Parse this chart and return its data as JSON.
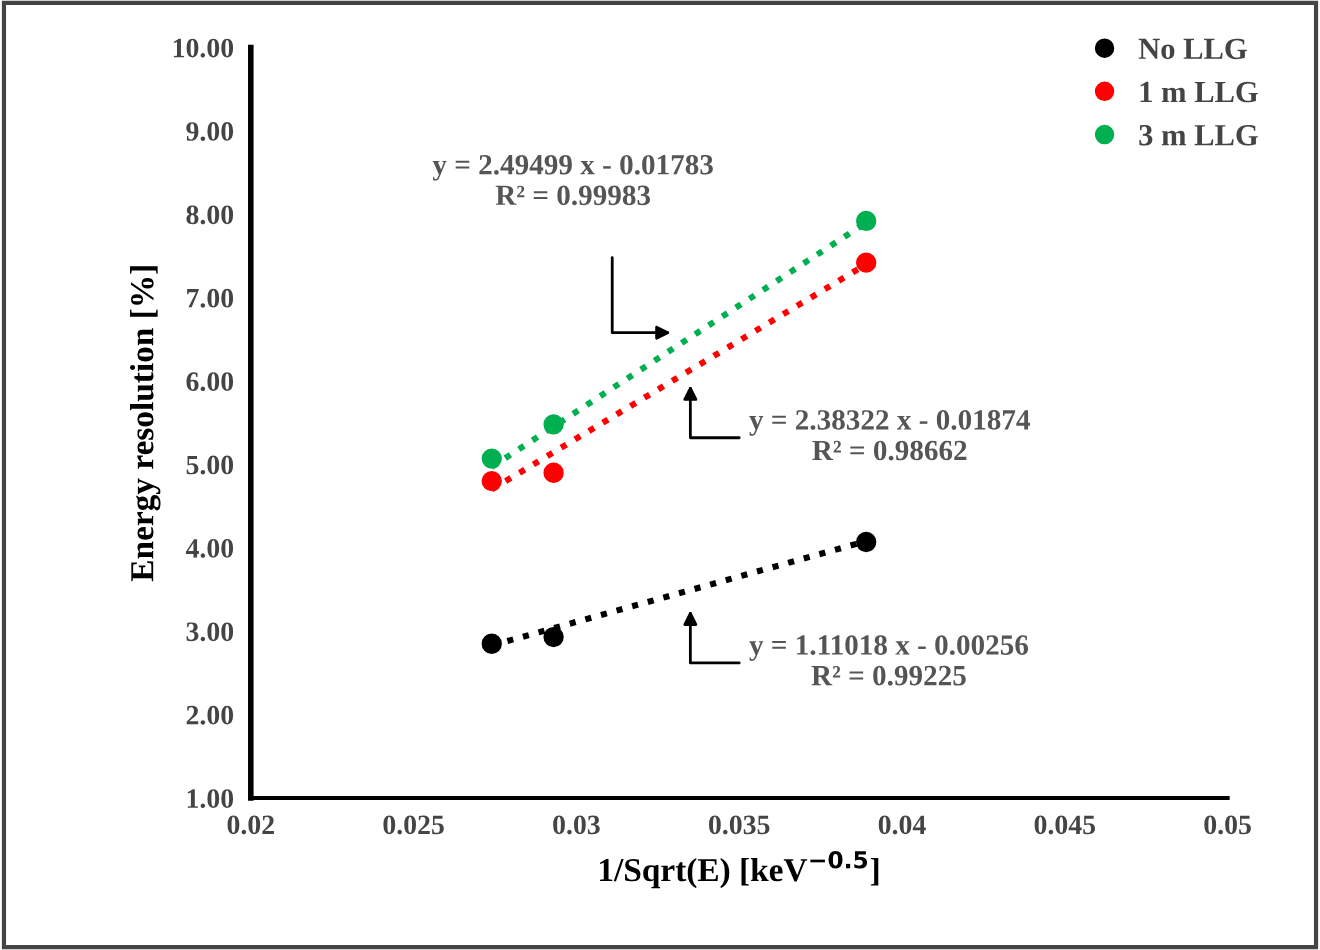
{
  "chart_data": {
    "type": "scatter",
    "xlabel": "1/Sqrt(E) [keV$^{−0.5}$]",
    "ylabel": "Energy resolution [%]",
    "xlim": [
      0.02,
      0.05
    ],
    "xticks": [
      {
        "value": 0.02,
        "label": "0.02"
      },
      {
        "value": 0.025,
        "label": "0.025"
      },
      {
        "value": 0.03,
        "label": "0.03"
      },
      {
        "value": 0.035,
        "label": "0.035"
      },
      {
        "value": 0.04,
        "label": "0.04"
      },
      {
        "value": 0.045,
        "label": "0.045"
      },
      {
        "value": 0.05,
        "label": "0.05"
      }
    ],
    "ylim": [
      1,
      10
    ],
    "yticks": [
      {
        "value": 1,
        "label": "1.00"
      },
      {
        "value": 2,
        "label": "2.00"
      },
      {
        "value": 3,
        "label": "3.00"
      },
      {
        "value": 4,
        "label": "4.00"
      },
      {
        "value": 5,
        "label": "5.00"
      },
      {
        "value": 6,
        "label": "6.00"
      },
      {
        "value": 7,
        "label": "7.00"
      },
      {
        "value": 8,
        "label": "8.00"
      },
      {
        "value": 9,
        "label": "9.00"
      },
      {
        "value": 10,
        "label": "10.00"
      }
    ],
    "grid": false,
    "legend": "top right",
    "marker": "circle",
    "series": [
      {
        "name": "No LLG",
        "color": "#000000",
        "x": [
          0.0274,
          0.0293,
          0.0389
        ],
        "values": [
          2.85,
          2.93,
          4.07
        ]
      },
      {
        "name": "1 m LLG",
        "color": "#ff0000",
        "x": [
          0.0274,
          0.0293,
          0.0389
        ],
        "values": [
          4.8,
          4.9,
          7.42
        ]
      },
      {
        "name": "3 m LLG",
        "color": "#00b050",
        "x": [
          0.0274,
          0.0293,
          0.0389
        ],
        "values": [
          5.07,
          5.48,
          7.92
        ]
      },
      {
        "type": "line",
        "marker": "none",
        "line_style": "dotted",
        "color": "#000000",
        "x": [
          0.0274,
          0.0389
        ],
        "values": [
          2.83,
          4.08
        ]
      },
      {
        "type": "line",
        "marker": "none",
        "line_style": "dotted",
        "color": "#ff0000",
        "x": [
          0.0274,
          0.0389
        ],
        "values": [
          4.7,
          7.4
        ]
      },
      {
        "type": "line",
        "marker": "none",
        "line_style": "dotted",
        "color": "#00b050",
        "x": [
          0.0274,
          0.0389
        ],
        "values": [
          4.97,
          7.9
        ]
      }
    ],
    "annotations": [
      "y = 2.49499 x - 0.01783\nR² = 0.99983",
      "y = 2.38322 x - 0.01874\nR² = 0.98662",
      "y = 1.11018 x - 0.00256\nR² = 0.99225"
    ]
  }
}
